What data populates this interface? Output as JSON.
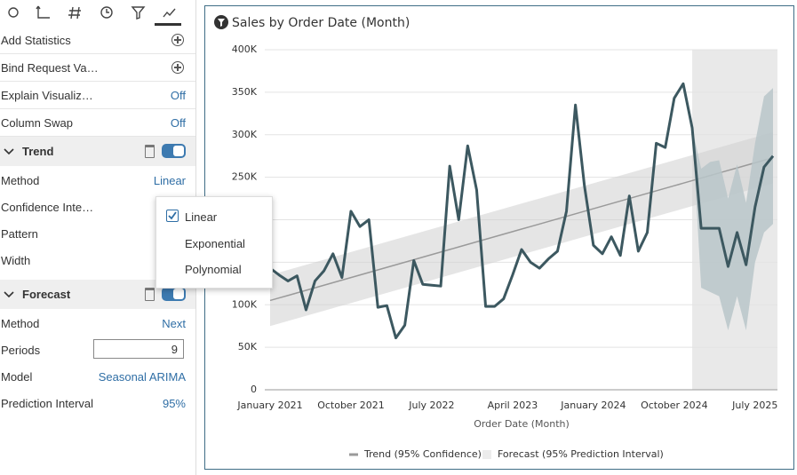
{
  "panel": {
    "rows": [
      {
        "label": "Add Statistics"
      },
      {
        "label": "Bind Request Va…"
      },
      {
        "label": "Explain Visualiz…",
        "value": "Off"
      },
      {
        "label": "Column Swap",
        "value": "Off"
      }
    ],
    "trend": {
      "title": "Trend",
      "rows": [
        {
          "label": "Method",
          "value": "Linear"
        },
        {
          "label": "Confidence Inte…"
        },
        {
          "label": "Pattern"
        },
        {
          "label": "Width"
        }
      ]
    },
    "forecast": {
      "title": "Forecast",
      "rows": [
        {
          "label": "Method",
          "value": "Next"
        },
        {
          "label": "Periods",
          "value": 9
        },
        {
          "label": "Model",
          "value": "Seasonal ARIMA"
        },
        {
          "label": "Prediction Interval",
          "value": "95%"
        }
      ]
    },
    "menu": {
      "items": [
        "Linear",
        "Exponential",
        "Polynomial"
      ]
    }
  },
  "chart_data": {
    "type": "line",
    "title": "Sales by Order Date (Month)",
    "x_label": "Order Date (Month)",
    "categories": [
      "January 2021",
      null,
      null,
      null,
      null,
      null,
      null,
      null,
      null,
      "October 2021",
      null,
      null,
      null,
      null,
      null,
      null,
      null,
      null,
      "July 2022",
      null,
      null,
      null,
      null,
      null,
      null,
      null,
      null,
      "April 2023",
      null,
      null,
      null,
      null,
      null,
      null,
      null,
      null,
      "January 2024",
      null,
      null,
      null,
      null,
      null,
      null,
      null,
      null,
      "October 2024",
      null,
      null,
      null,
      null,
      null,
      null,
      null,
      null,
      "July 2025",
      null,
      null
    ],
    "values": [
      143000,
      135000,
      128000,
      134000,
      94000,
      128000,
      140000,
      160000,
      132000,
      210000,
      192000,
      200000,
      97000,
      99000,
      61000,
      76000,
      152000,
      124000,
      123000,
      122000,
      263000,
      200000,
      287000,
      235000,
      98000,
      98000,
      107000,
      135000,
      165000,
      150000,
      143000,
      154000,
      163000,
      210000,
      335000,
      240000,
      170000,
      160000,
      180000,
      158000,
      228000,
      163000,
      185000,
      290000,
      285000,
      343000,
      360000,
      308000,
      190000,
      190000,
      190000,
      145000,
      185000,
      147000,
      215000,
      262000,
      275000
    ],
    "color": "#3c5860",
    "trend": {
      "name": "Trend (95% Confidence)",
      "color": "#9a9a9a",
      "values": [
        105000,
        108000,
        111000,
        114000,
        117000,
        120000,
        123000,
        126000,
        129000,
        132000,
        135000,
        138000,
        141000,
        144000,
        147000,
        150000,
        153000,
        156000,
        159000,
        162000,
        165000,
        168000,
        171000,
        174000,
        177000,
        180000,
        183000,
        186000,
        189000,
        192000,
        195000,
        198000,
        201000,
        204000,
        207000,
        210000,
        213000,
        216000,
        219000,
        222000,
        225000,
        228000,
        231000,
        234000,
        237000,
        240000,
        243000,
        246000,
        249000,
        252000,
        255000,
        258000,
        261000,
        264000,
        267000,
        270000,
        273000
      ],
      "lower": [
        75000,
        78000,
        81000,
        84000,
        87000,
        90000,
        93000,
        96000,
        99000,
        102000,
        105000,
        108000,
        111000,
        114000,
        117000,
        120000,
        123000,
        126000,
        129000,
        132000,
        135000,
        138000,
        141000,
        144000,
        147000,
        150000,
        153000,
        156000,
        159000,
        162000,
        165000,
        168000,
        171000,
        174000,
        177000,
        180000,
        183000,
        186000,
        189000,
        192000,
        195000,
        198000,
        201000,
        204000,
        207000,
        210000,
        213000,
        216000,
        219000,
        222000,
        225000,
        228000,
        231000,
        234000,
        237000,
        240000,
        243000
      ],
      "upper": [
        135000,
        138000,
        141000,
        144000,
        147000,
        150000,
        153000,
        156000,
        159000,
        162000,
        165000,
        168000,
        171000,
        174000,
        177000,
        180000,
        183000,
        186000,
        189000,
        192000,
        195000,
        198000,
        201000,
        204000,
        207000,
        210000,
        213000,
        216000,
        219000,
        222000,
        225000,
        228000,
        231000,
        234000,
        237000,
        240000,
        243000,
        246000,
        249000,
        252000,
        255000,
        258000,
        261000,
        264000,
        267000,
        270000,
        273000,
        276000,
        279000,
        282000,
        285000,
        288000,
        291000,
        294000,
        297000,
        300000,
        303000
      ]
    },
    "forecast": {
      "name": "Forecast (95% Prediction Interval)",
      "color": "#b9c5c9",
      "lower": [
        null,
        null,
        null,
        null,
        null,
        null,
        null,
        null,
        null,
        null,
        null,
        null,
        null,
        null,
        null,
        null,
        null,
        null,
        null,
        null,
        null,
        null,
        null,
        null,
        null,
        null,
        null,
        null,
        null,
        null,
        null,
        null,
        null,
        null,
        null,
        null,
        null,
        null,
        null,
        null,
        null,
        null,
        null,
        null,
        null,
        null,
        null,
        308000,
        120000,
        115000,
        110000,
        70000,
        110000,
        70000,
        150000,
        185000,
        195000
      ],
      "upper": [
        null,
        null,
        null,
        null,
        null,
        null,
        null,
        null,
        null,
        null,
        null,
        null,
        null,
        null,
        null,
        null,
        null,
        null,
        null,
        null,
        null,
        null,
        null,
        null,
        null,
        null,
        null,
        null,
        null,
        null,
        null,
        null,
        null,
        null,
        null,
        null,
        null,
        null,
        null,
        null,
        null,
        null,
        null,
        null,
        null,
        null,
        null,
        308000,
        260000,
        268000,
        270000,
        225000,
        265000,
        220000,
        290000,
        345000,
        355000
      ]
    },
    "ylim": [
      0,
      400000
    ],
    "yticks": [
      0,
      {
        "value": 50000,
        "label": "50K"
      },
      {
        "value": 100000,
        "label": "100K"
      },
      {
        "value": 150000,
        "label": "150K"
      },
      {
        "value": 200000,
        "label": "200K"
      },
      {
        "value": 250000,
        "label": "250K"
      },
      {
        "value": 300000,
        "label": "300K"
      },
      {
        "value": 350000,
        "label": "350K"
      },
      {
        "value": 400000,
        "label": "400K"
      }
    ],
    "grid": true
  }
}
